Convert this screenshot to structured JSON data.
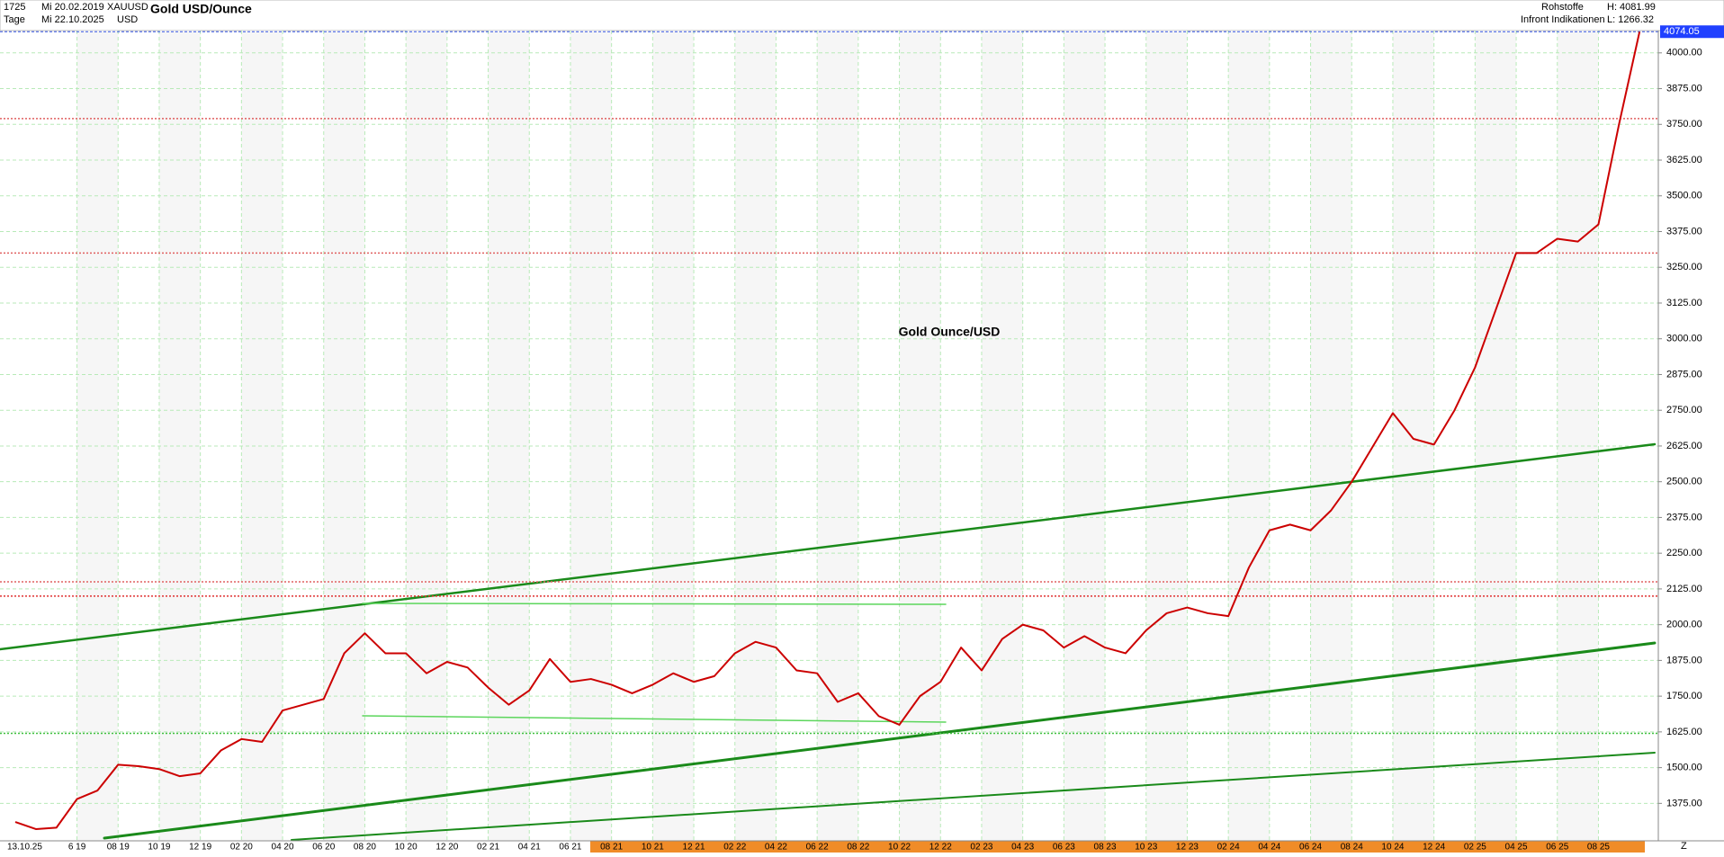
{
  "header": {
    "bars": "1725",
    "period": "Tage",
    "start_date": "Mi 20.02.2019",
    "end_date": "Mi 22.10.2025",
    "symbol": "XAUUSD",
    "currency": "USD",
    "name": "Gold USD/Ounce",
    "category": "Rohstoffe",
    "source": "Infront Indikationen",
    "high": "H: 4081.99",
    "low": "L: 1266.32"
  },
  "chart_data": {
    "type": "line",
    "title": "Gold Ounce/USD",
    "color": "#cc0000",
    "x": [
      null,
      null,
      null,
      "6 19",
      null,
      "08 19",
      null,
      "10 19",
      null,
      "12 19",
      null,
      "02 20",
      null,
      "04 20",
      null,
      "06 20",
      null,
      "08 20",
      null,
      "10 20",
      null,
      "12 20",
      null,
      "02 21",
      null,
      "04 21",
      null,
      "06 21",
      null,
      "08 21",
      null,
      "10 21",
      null,
      "12 21",
      null,
      "02 22",
      null,
      "04 22",
      null,
      "06 22",
      null,
      "08 22",
      null,
      "10 22",
      null,
      "12 22",
      null,
      "02 23",
      null,
      "04 23",
      null,
      "06 23",
      null,
      "08 23",
      null,
      "10 23",
      null,
      "12 23",
      null,
      "02 24",
      null,
      "04 24",
      null,
      "06 24",
      null,
      "08 24",
      null,
      "10 24",
      null,
      "12 24",
      null,
      "02 25",
      null,
      "04 25",
      null,
      "06 25",
      null,
      "08 25",
      null,
      null
    ],
    "values": [
      1310,
      1285,
      1290,
      1390,
      1420,
      1510,
      1505,
      1495,
      1470,
      1480,
      1560,
      1600,
      1590,
      1700,
      1720,
      1740,
      1900,
      1970,
      1900,
      1900,
      1830,
      1870,
      1850,
      1780,
      1720,
      1770,
      1880,
      1800,
      1810,
      1790,
      1760,
      1790,
      1830,
      1800,
      1820,
      1900,
      1940,
      1920,
      1840,
      1830,
      1730,
      1760,
      1680,
      1650,
      1750,
      1800,
      1920,
      1840,
      1950,
      2000,
      1980,
      1920,
      1960,
      1920,
      1900,
      1980,
      2040,
      2060,
      2040,
      2030,
      2200,
      2330,
      2350,
      2330,
      2400,
      2500,
      2620,
      2740,
      2650,
      2630,
      2750,
      2900,
      3100,
      3300,
      3300,
      3350,
      3340,
      3400,
      3750,
      4074.05
    ],
    "current_price": 4074.05,
    "ylim": [
      1244,
      4078
    ],
    "yticks": [
      {
        "value": 1375,
        "label": "1375.00"
      },
      {
        "value": 1500,
        "label": "1500.00"
      },
      {
        "value": 1625,
        "label": "1625.00"
      },
      {
        "value": 1750,
        "label": "1750.00"
      },
      {
        "value": 1875,
        "label": "1875.00"
      },
      {
        "value": 2000,
        "label": "2000.00"
      },
      {
        "value": 2125,
        "label": "2125.00"
      },
      {
        "value": 2250,
        "label": "2250.00"
      },
      {
        "value": 2375,
        "label": "2375.00"
      },
      {
        "value": 2500,
        "label": "2500.00"
      },
      {
        "value": 2625,
        "label": "2625.00"
      },
      {
        "value": 2750,
        "label": "2750.00"
      },
      {
        "value": 2875,
        "label": "2875.00"
      },
      {
        "value": 3000,
        "label": "3000.00"
      },
      {
        "value": 3125,
        "label": "3125.00"
      },
      {
        "value": 3250,
        "label": "3250.00"
      },
      {
        "value": 3375,
        "label": "3375.00"
      },
      {
        "value": 3500,
        "label": "3500.00"
      },
      {
        "value": 3625,
        "label": "3625.00"
      },
      {
        "value": 3750,
        "label": "3750.00"
      },
      {
        "value": 3875,
        "label": "3875.00"
      },
      {
        "value": 4000,
        "label": "4000.00"
      }
    ],
    "reference_lines": [
      {
        "value": 3770,
        "color": "#e06060"
      },
      {
        "value": 3300,
        "color": "#e06060"
      },
      {
        "value": 2150,
        "color": "#e06060"
      },
      {
        "value": 2100,
        "color": "#e03030"
      },
      {
        "value": 1620,
        "color": "#40c040"
      }
    ],
    "grid": true,
    "cursor_date": "13.10.25",
    "corner_label": "Z"
  }
}
